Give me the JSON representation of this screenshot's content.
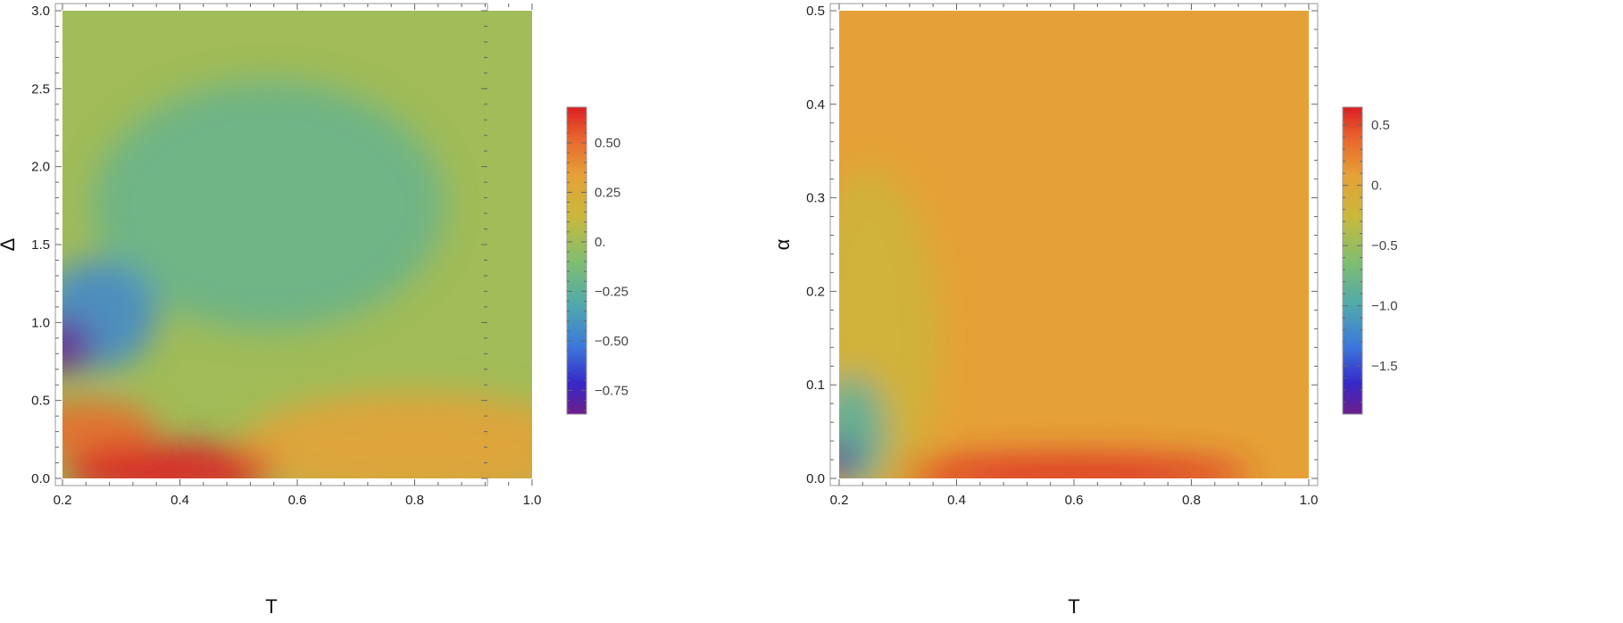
{
  "chart_data": [
    {
      "type": "heatmap",
      "xlabel": "T",
      "ylabel": "Δ",
      "xlim": [
        0.2,
        1.0
      ],
      "ylim": [
        0.0,
        3.0
      ],
      "x_ticks": [
        "0.2",
        "0.4",
        "0.6",
        "0.8",
        "1.0"
      ],
      "y_ticks": [
        "0.0",
        "0.5",
        "1.0",
        "1.5",
        "2.0",
        "2.5",
        "3.0"
      ],
      "colorbar": {
        "range": [
          -0.87,
          0.68
        ],
        "ticks": [
          0.5,
          0.25,
          0.0,
          -0.25,
          -0.5,
          -0.75
        ],
        "tick_labels": [
          "0.50",
          "0.25",
          "0.",
          "−0.25",
          "−0.50",
          "−0.75"
        ]
      },
      "features": [
        {
          "x": 0.2,
          "y": 0.85,
          "value": -0.85,
          "spread_x": 0.05,
          "spread_y": 0.17
        },
        {
          "x": 0.26,
          "y": 1.05,
          "value": -0.45,
          "spread_x": 0.1,
          "spread_y": 0.35
        },
        {
          "x": 0.55,
          "y": 1.75,
          "value": -0.2,
          "spread_x": 0.3,
          "spread_y": 0.8
        },
        {
          "x": 0.38,
          "y": 0.05,
          "value": 0.68,
          "spread_x": 0.18,
          "spread_y": 0.18
        },
        {
          "x": 0.24,
          "y": 0.32,
          "value": 0.5,
          "spread_x": 0.12,
          "spread_y": 0.18
        },
        {
          "x": 0.8,
          "y": 0.2,
          "value": 0.32,
          "spread_x": 0.3,
          "spread_y": 0.35
        }
      ],
      "background": 0.0,
      "grid": false
    },
    {
      "type": "heatmap",
      "xlabel": "T",
      "ylabel": "α",
      "xlim": [
        0.2,
        1.0
      ],
      "ylim": [
        0.0,
        0.5
      ],
      "x_ticks": [
        "0.2",
        "0.4",
        "0.6",
        "0.8",
        "1.0"
      ],
      "y_ticks": [
        "0.0",
        "0.1",
        "0.2",
        "0.3",
        "0.4",
        "0.5"
      ],
      "colorbar": {
        "range": [
          -1.9,
          0.65
        ],
        "ticks": [
          0.5,
          0.0,
          -0.5,
          -1.0,
          -1.5
        ],
        "tick_labels": [
          "0.5",
          "0.",
          "−0.5",
          "−1.0",
          "−1.5"
        ]
      },
      "features": [
        {
          "x": 0.2,
          "y": 0.02,
          "value": -1.8,
          "spread_x": 0.03,
          "spread_y": 0.02
        },
        {
          "x": 0.22,
          "y": 0.05,
          "value": -0.9,
          "spread_x": 0.06,
          "spread_y": 0.06
        },
        {
          "x": 0.25,
          "y": 0.15,
          "value": -0.2,
          "spread_x": 0.12,
          "spread_y": 0.18
        },
        {
          "x": 0.6,
          "y": 0.005,
          "value": 0.6,
          "spread_x": 0.3,
          "spread_y": 0.02
        }
      ],
      "background": 0.08,
      "grid": false
    }
  ]
}
